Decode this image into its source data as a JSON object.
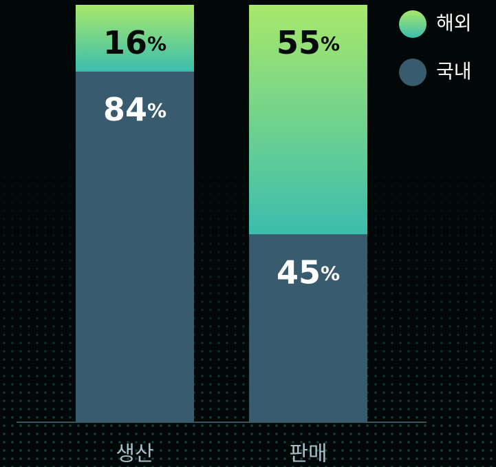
{
  "chart_data": {
    "type": "stacked_bar",
    "categories": [
      "생산",
      "판매"
    ],
    "series": [
      {
        "name": "국내",
        "color": "#385b6e",
        "values": [
          84,
          45
        ],
        "value_labels": [
          "84%",
          "45%"
        ]
      },
      {
        "name": "해외",
        "color": [
          "#a8e86b",
          "#3bbdae"
        ],
        "values": [
          16,
          55
        ],
        "value_labels": [
          "16%",
          "55%"
        ]
      }
    ],
    "ylim": [
      0,
      100
    ]
  }
}
